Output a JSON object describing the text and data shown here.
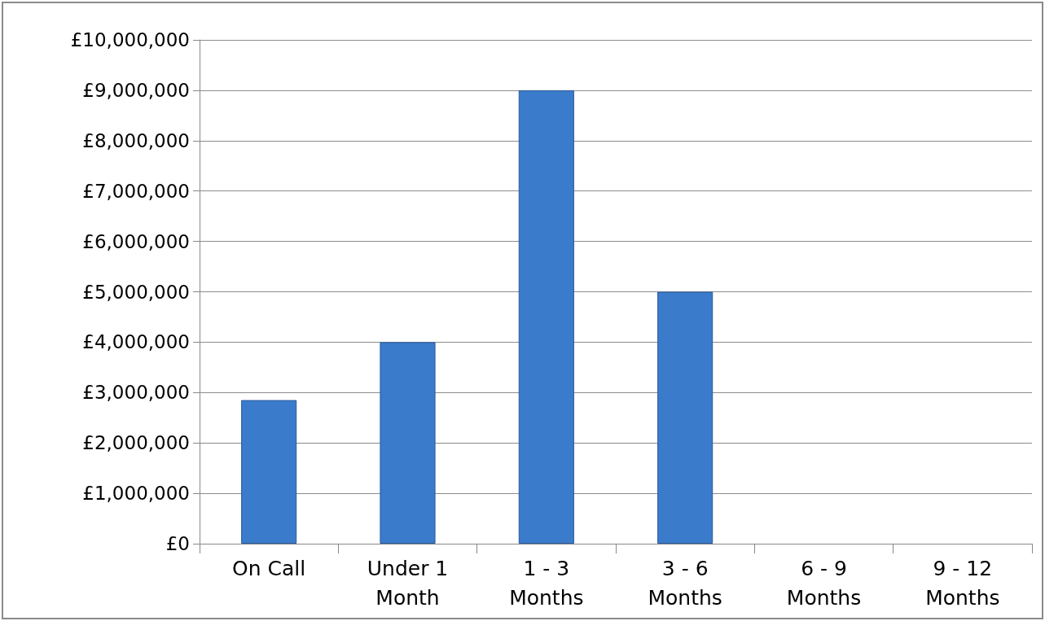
{
  "chart_data": {
    "type": "bar",
    "categories": [
      "On Call",
      "Under 1\nMonth",
      "1 - 3\nMonths",
      "3 - 6\nMonths",
      "6 - 9\nMonths",
      "9 - 12\nMonths"
    ],
    "values": [
      2850000,
      4000000,
      9000000,
      5000000,
      null,
      null
    ],
    "color": "#3b7bcc",
    "ylim": [
      0,
      10000000
    ],
    "yticks": [
      {
        "value": 0,
        "label": "£0"
      },
      {
        "value": 1000000,
        "label": "£1,000,000"
      },
      {
        "value": 2000000,
        "label": "£2,000,000"
      },
      {
        "value": 3000000,
        "label": "£3,000,000"
      },
      {
        "value": 4000000,
        "label": "£4,000,000"
      },
      {
        "value": 5000000,
        "label": "£5,000,000"
      },
      {
        "value": 6000000,
        "label": "£6,000,000"
      },
      {
        "value": 7000000,
        "label": "£7,000,000"
      },
      {
        "value": 8000000,
        "label": "£8,000,000"
      },
      {
        "value": 9000000,
        "label": "£9,000,000"
      },
      {
        "value": 10000000,
        "label": "£10,000,000"
      }
    ],
    "grid": "y"
  }
}
